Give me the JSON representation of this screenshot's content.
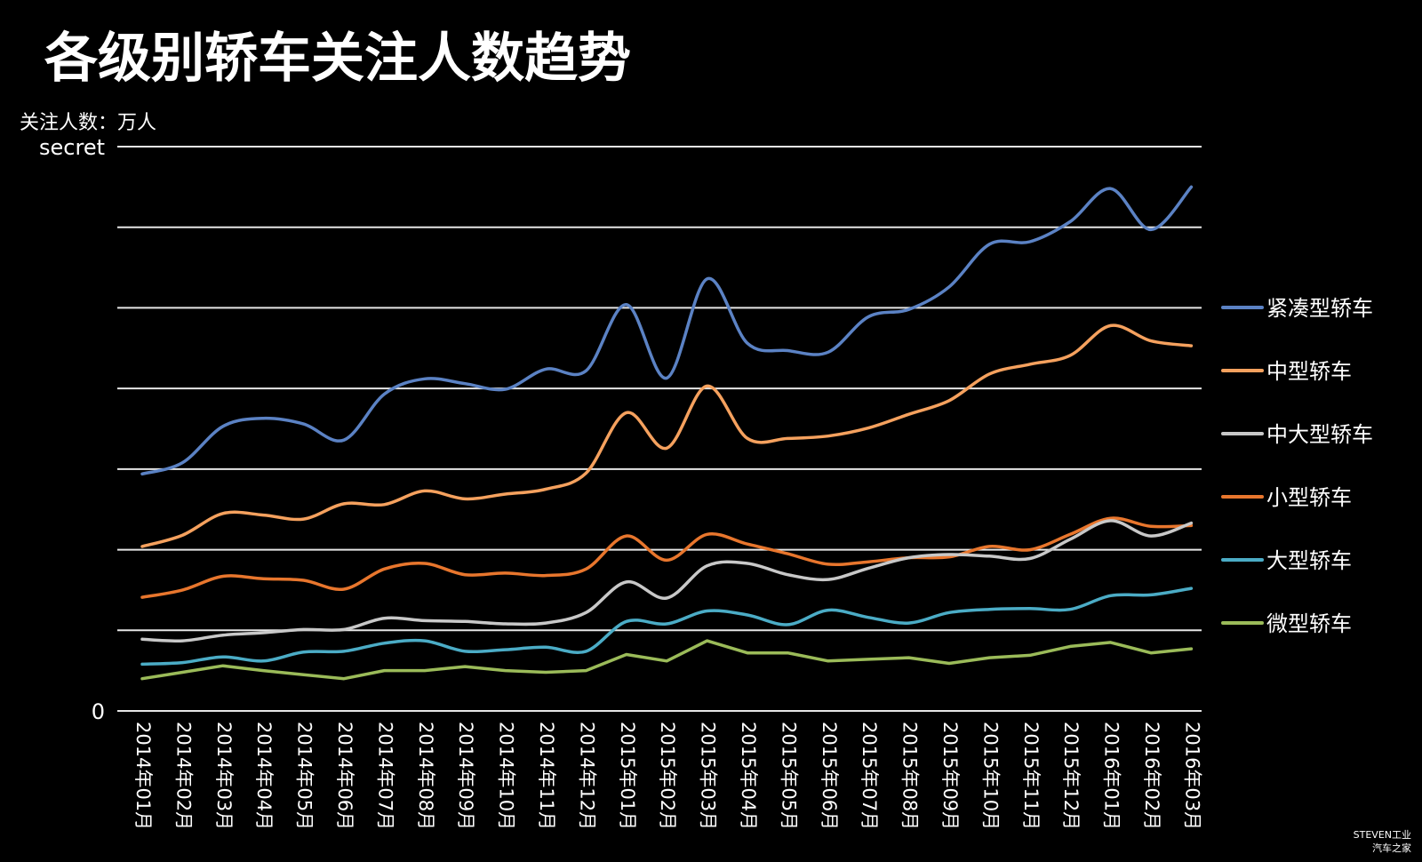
{
  "chart_title": "各级别轿车关注人数趋势",
  "unit_label": "关注人数：万人",
  "watermark": {
    "line1": "STEVEN工业",
    "line2": "汽车之家"
  },
  "chart_data": {
    "type": "line",
    "title": "各级别轿车关注人数趋势",
    "ylabel": "关注人数：万人",
    "xlabel": "",
    "y_ticks": [
      {
        "value": 0,
        "label": "0"
      },
      {
        "value": 7,
        "label": "secret"
      }
    ],
    "ylim": [
      0,
      7
    ],
    "grid": true,
    "legend": "right",
    "categories": [
      "2014年01月",
      "2014年02月",
      "2014年03月",
      "2014年04月",
      "2014年05月",
      "2014年06月",
      "2014年07月",
      "2014年08月",
      "2014年09月",
      "2014年10月",
      "2014年11月",
      "2014年12月",
      "2015年01月",
      "2015年02月",
      "2015年03月",
      "2015年04月",
      "2015年05月",
      "2015年06月",
      "2015年07月",
      "2015年08月",
      "2015年09月",
      "2015年10月",
      "2015年11月",
      "2015年12月",
      "2016年01月",
      "2016年02月",
      "2016年03月"
    ],
    "series": [
      {
        "name": "紧凑型轿车",
        "color": "#5b82c4",
        "smooth": true,
        "values": [
          2.94,
          3.08,
          3.53,
          3.63,
          3.56,
          3.36,
          3.93,
          4.12,
          4.06,
          3.99,
          4.24,
          4.22,
          5.04,
          4.13,
          5.36,
          4.56,
          4.47,
          4.45,
          4.89,
          4.98,
          5.26,
          5.79,
          5.82,
          6.07,
          6.48,
          5.97,
          6.5
        ]
      },
      {
        "name": "中型轿车",
        "color": "#f5a15e",
        "smooth": true,
        "values": [
          2.04,
          2.18,
          2.45,
          2.43,
          2.38,
          2.57,
          2.56,
          2.73,
          2.63,
          2.69,
          2.75,
          2.95,
          3.7,
          3.26,
          4.03,
          3.38,
          3.38,
          3.41,
          3.51,
          3.68,
          3.85,
          4.18,
          4.3,
          4.41,
          4.78,
          4.59,
          4.53
        ]
      },
      {
        "name": "中大型轿车",
        "color": "#c8c8c8",
        "smooth": true,
        "values": [
          0.89,
          0.87,
          0.94,
          0.97,
          1.01,
          1.01,
          1.15,
          1.12,
          1.11,
          1.08,
          1.09,
          1.22,
          1.6,
          1.4,
          1.8,
          1.83,
          1.69,
          1.63,
          1.77,
          1.9,
          1.94,
          1.92,
          1.89,
          2.13,
          2.36,
          2.17,
          2.33
        ]
      },
      {
        "name": "小型轿车",
        "color": "#e8762d",
        "smooth": true,
        "values": [
          1.41,
          1.5,
          1.67,
          1.64,
          1.62,
          1.51,
          1.76,
          1.83,
          1.69,
          1.71,
          1.68,
          1.76,
          2.17,
          1.87,
          2.19,
          2.07,
          1.95,
          1.82,
          1.85,
          1.9,
          1.91,
          2.04,
          2.0,
          2.19,
          2.39,
          2.29,
          2.3
        ]
      },
      {
        "name": "大型轿车",
        "color": "#4bacc6",
        "smooth": true,
        "values": [
          0.58,
          0.6,
          0.67,
          0.62,
          0.73,
          0.74,
          0.84,
          0.87,
          0.74,
          0.76,
          0.79,
          0.74,
          1.11,
          1.08,
          1.24,
          1.19,
          1.07,
          1.25,
          1.16,
          1.09,
          1.22,
          1.26,
          1.27,
          1.26,
          1.43,
          1.44,
          1.52
        ]
      },
      {
        "name": "微型轿车",
        "color": "#9bbb59",
        "smooth": false,
        "values": [
          0.4,
          0.48,
          0.56,
          0.5,
          0.45,
          0.4,
          0.5,
          0.5,
          0.55,
          0.5,
          0.48,
          0.5,
          0.7,
          0.62,
          0.87,
          0.72,
          0.72,
          0.62,
          0.64,
          0.66,
          0.59,
          0.66,
          0.69,
          0.8,
          0.85,
          0.72,
          0.77
        ]
      }
    ]
  }
}
